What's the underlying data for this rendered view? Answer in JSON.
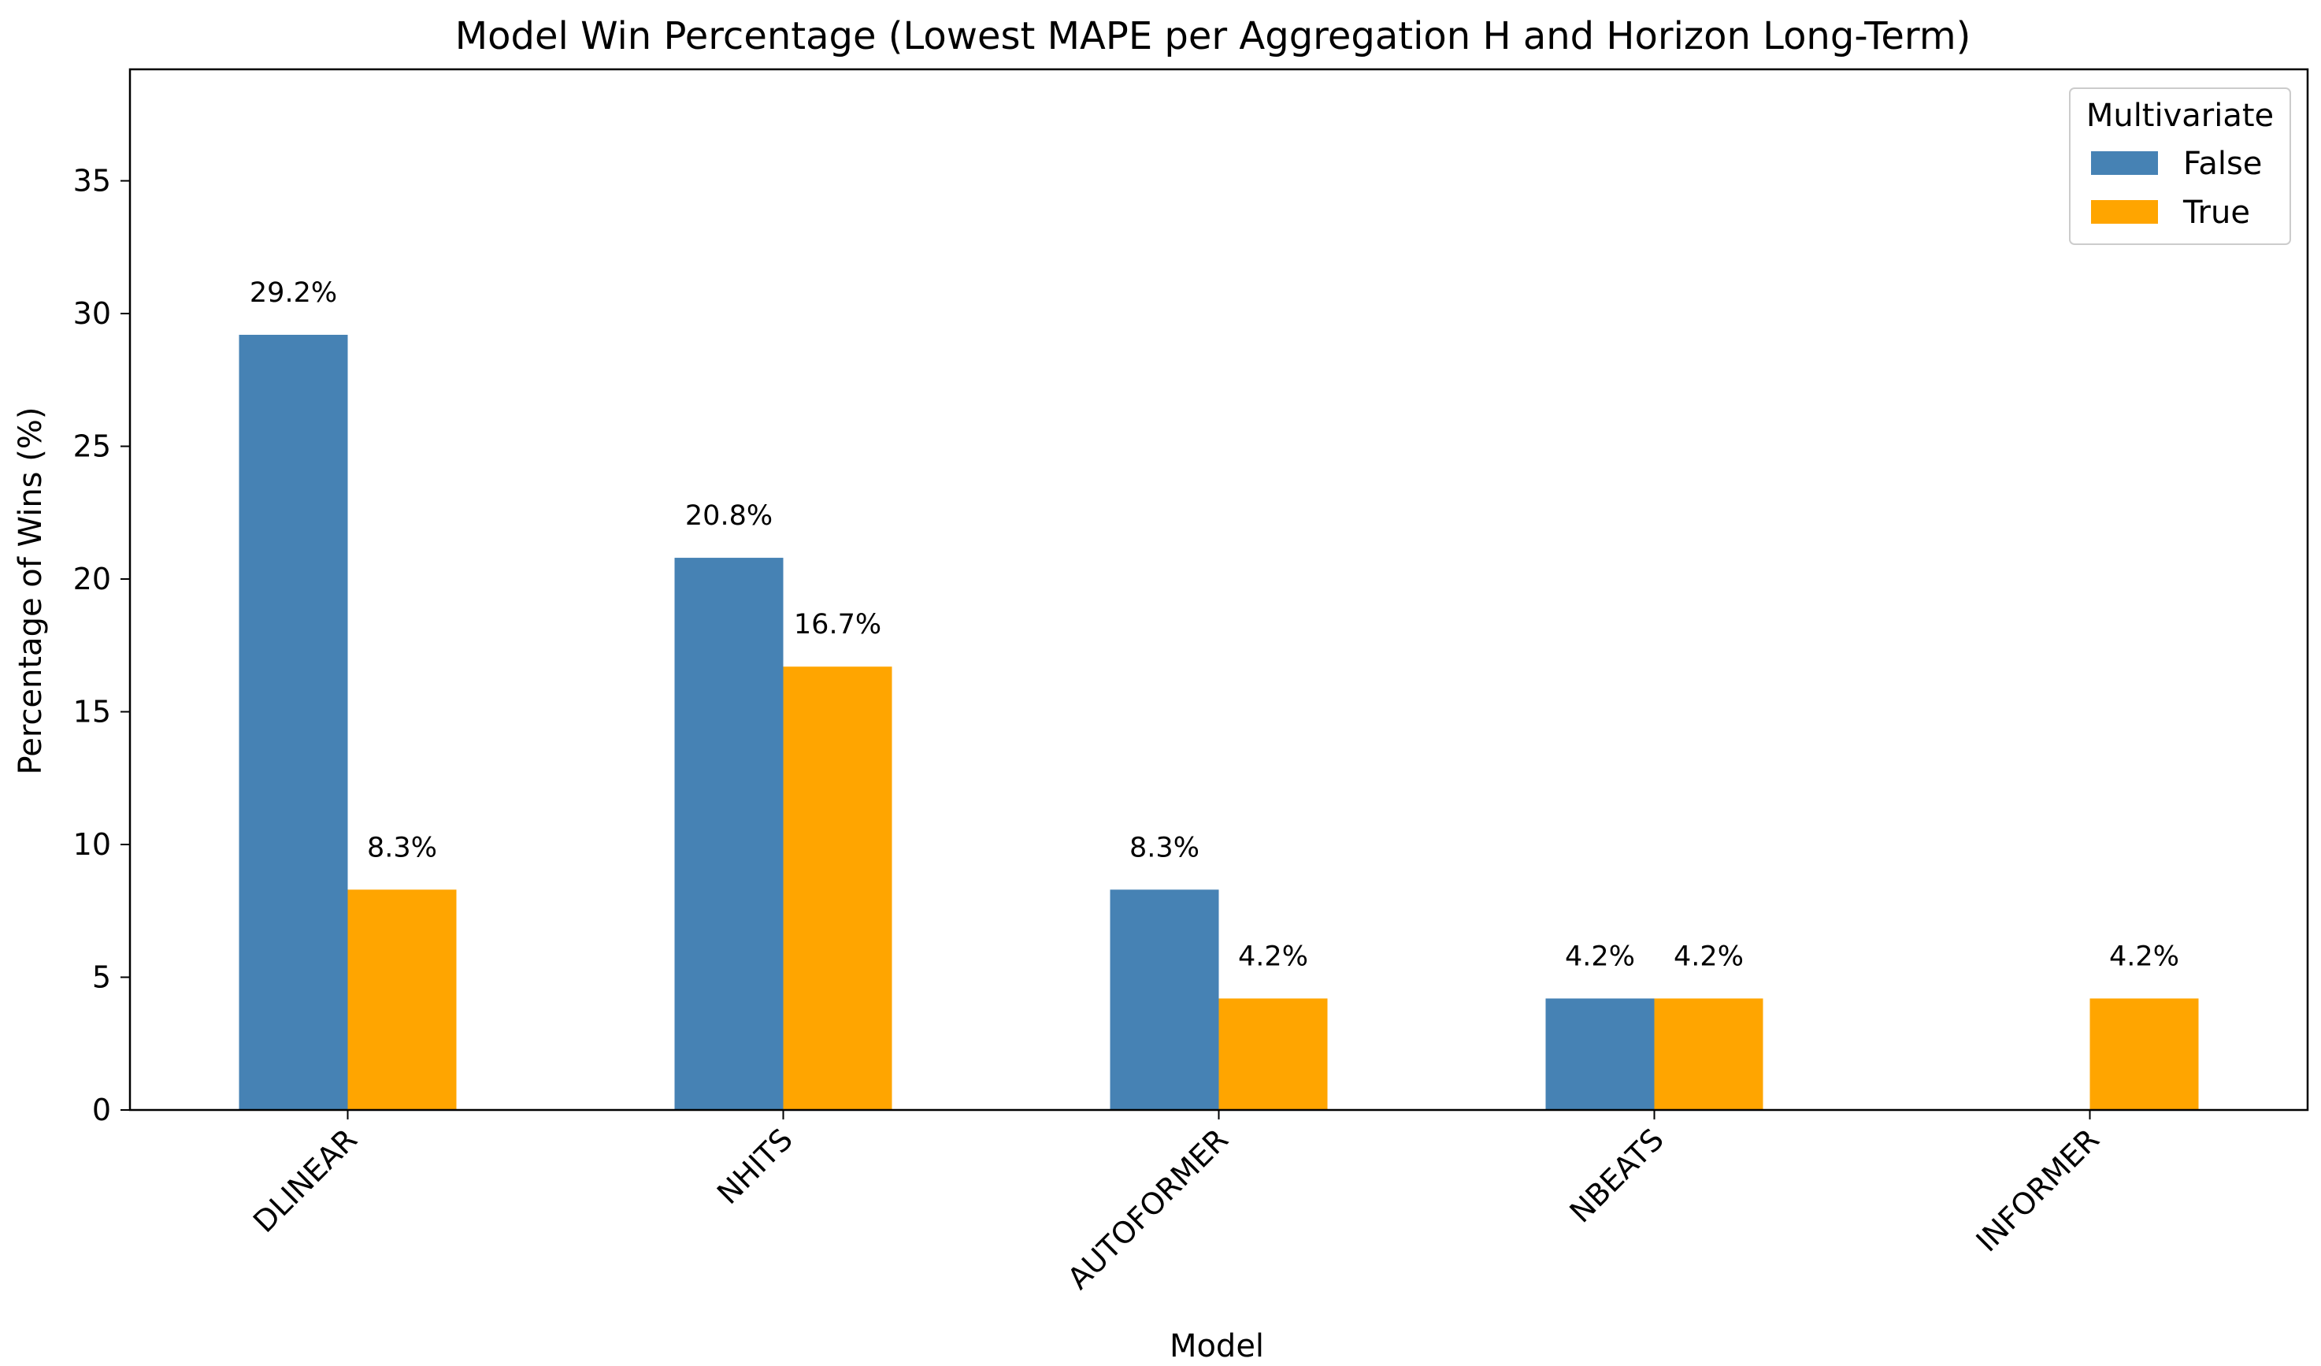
{
  "chart_data": {
    "type": "bar",
    "title": "Model Win Percentage (Lowest MAPE per Aggregation H and Horizon Long-Term)",
    "xlabel": "Model",
    "ylabel": "Percentage of Wins (%)",
    "categories": [
      "DLINEAR",
      "NHITS",
      "AUTOFORMER",
      "NBEATS",
      "INFORMER"
    ],
    "series": [
      {
        "name": "False",
        "color": "#4682b4",
        "values": [
          29.2,
          20.8,
          8.3,
          4.2,
          0
        ],
        "labels": [
          "29.2%",
          "20.8%",
          "8.3%",
          "4.2%",
          ""
        ]
      },
      {
        "name": "True",
        "color": "#ffa500",
        "values": [
          8.3,
          16.7,
          4.2,
          4.2,
          4.2
        ],
        "labels": [
          "8.3%",
          "16.7%",
          "4.2%",
          "4.2%",
          "4.2%"
        ]
      }
    ],
    "ylim": [
      0,
      39.2
    ],
    "yticks": [
      "0",
      "5",
      "10",
      "15",
      "20",
      "25",
      "30",
      "35"
    ],
    "grid": false,
    "legend": {
      "title": "Multivariate",
      "placement": "top-right"
    }
  }
}
